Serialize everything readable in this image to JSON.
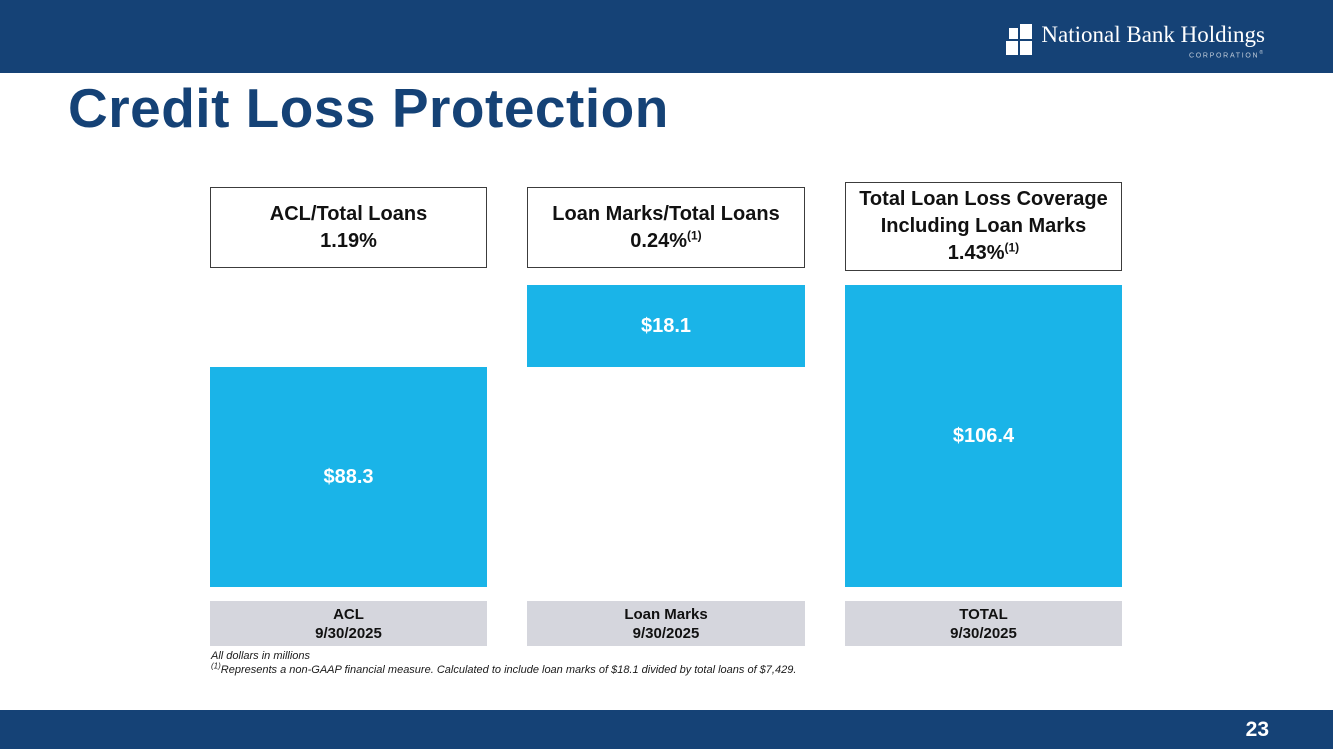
{
  "title": "Credit Loss Protection",
  "logo": {
    "name": "National Bank Holdings",
    "subtitle": "CORPORATION",
    "mark": "®"
  },
  "columns": [
    {
      "ratio": {
        "line1": "ACL/Total Loans",
        "line2": "",
        "value": "1.19%",
        "sup": ""
      },
      "bar_label": "$88.3",
      "axis": {
        "line1": "ACL",
        "line2": "9/30/2025"
      }
    },
    {
      "ratio": {
        "line1": "Loan Marks/Total Loans",
        "line2": "",
        "value": "0.24%",
        "sup": "(1)"
      },
      "bar_label": "$18.1",
      "axis": {
        "line1": "Loan Marks",
        "line2": "9/30/2025"
      }
    },
    {
      "ratio": {
        "line1": "Total Loan Loss Coverage",
        "line2": "Including Loan Marks",
        "value": "1.43%",
        "sup": "(1)"
      },
      "bar_label": "$106.4",
      "axis": {
        "line1": "TOTAL",
        "line2": "9/30/2025"
      }
    }
  ],
  "footnotes": {
    "line1": "All dollars in millions",
    "line2_sup": "(1)",
    "line2": "Represents a non-GAAP financial measure.  Calculated to include loan marks of $18.1 divided by total loans of $7,429."
  },
  "footer": {
    "page_number": "23"
  },
  "colors": {
    "navy": "#154276",
    "bar_cyan": "#1AB4E8",
    "axis_gray": "#D5D6DD"
  },
  "chart_data": {
    "type": "bar",
    "title": "Credit Loss Protection",
    "categories": [
      "ACL 9/30/2025",
      "Loan Marks 9/30/2025",
      "TOTAL 9/30/2025"
    ],
    "values": [
      88.3,
      18.1,
      106.4
    ],
    "value_labels": [
      "$88.3",
      "$18.1",
      "$106.4"
    ],
    "units": "USD millions",
    "annotations": [
      "ACL/Total Loans 1.19%",
      "Loan Marks/Total Loans 0.24%(1)",
      "Total Loan Loss Coverage Including Loan Marks 1.43%(1)"
    ],
    "bar_color": "#1AB4E8",
    "layout_note": "Loan Marks bar floats above the ACL bar level; TOTAL bar spans the stacked height of ACL + Loan Marks; no axes or gridlines shown"
  }
}
